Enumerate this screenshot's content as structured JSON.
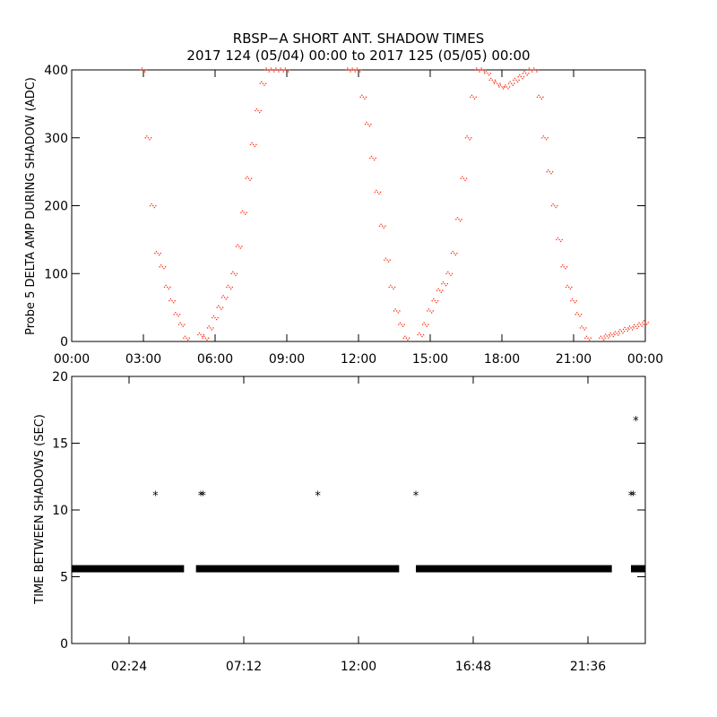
{
  "header": {
    "title": "RBSP−A SHORT ANT. SHADOW TIMES",
    "subtitle": "2017 124 (05/04) 00:00 to 2017 125 (05/05) 00:00"
  },
  "chart_data": [
    {
      "type": "scatter",
      "ylabel": "Probe 5 DELTA AMP DURING SHADOW (ADC)",
      "xlim_hours": [
        0,
        24
      ],
      "ylim": [
        0,
        400
      ],
      "x_ticks": [
        "00:00",
        "03:00",
        "06:00",
        "09:00",
        "12:00",
        "15:00",
        "18:00",
        "21:00",
        "00:00"
      ],
      "y_ticks": [
        "0",
        "100",
        "200",
        "300",
        "400"
      ],
      "marker_color": "#ff2a10",
      "series": [
        {
          "x_hours": [
            3.0,
            3.2,
            3.4,
            3.6,
            3.8,
            4.0,
            4.2,
            4.4,
            4.6,
            4.8,
            5.0,
            5.2,
            5.4,
            5.6,
            5.8,
            6.0,
            6.2,
            6.4,
            6.6,
            6.8,
            7.0,
            7.2,
            7.4,
            7.6,
            7.8,
            8.0,
            8.2,
            8.4,
            8.6,
            8.8,
            9.0,
            9.2,
            9.4,
            9.6,
            9.8,
            10.0,
            10.2,
            10.4,
            10.6,
            10.8,
            11.0,
            11.2,
            11.4,
            11.6,
            11.8,
            12.0,
            12.2,
            12.4,
            12.6,
            12.8,
            13.0,
            13.2,
            13.4,
            13.6,
            13.8,
            14.0,
            14.2,
            14.4,
            14.6,
            14.8,
            15.0,
            15.2,
            15.4,
            15.6,
            15.8,
            16.0,
            16.2,
            16.4,
            16.6,
            16.8,
            17.0,
            17.2,
            17.4,
            17.6,
            17.8,
            18.0,
            18.2,
            18.4,
            18.6,
            18.8,
            19.0,
            19.2,
            19.4,
            19.6,
            19.8,
            20.0,
            20.2,
            20.4,
            20.6,
            20.8,
            21.0,
            21.2,
            21.4,
            21.6,
            21.8,
            22.0,
            22.2,
            22.4,
            22.6,
            22.8,
            23.0,
            23.2,
            23.4,
            23.6,
            23.8,
            24.0
          ],
          "y": [
            400,
            300,
            200,
            130,
            110,
            80,
            60,
            40,
            25,
            5,
            null,
            null,
            10,
            5,
            20,
            35,
            50,
            65,
            80,
            100,
            140,
            190,
            240,
            290,
            340,
            380,
            400,
            400,
            400,
            400,
            400,
            null,
            null,
            null,
            null,
            null,
            null,
            null,
            null,
            null,
            null,
            null,
            null,
            400,
            400,
            400,
            360,
            320,
            270,
            220,
            170,
            120,
            80,
            45,
            25,
            5,
            null,
            null,
            10,
            25,
            45,
            60,
            75,
            85,
            100,
            130,
            180,
            240,
            300,
            360,
            400,
            400,
            395,
            385,
            380,
            375,
            375,
            380,
            385,
            390,
            395,
            400,
            400,
            360,
            300,
            250,
            200,
            150,
            110,
            80,
            60,
            40,
            20,
            5,
            null,
            null,
            5,
            8,
            10,
            12,
            15,
            18,
            20,
            22,
            25,
            28
          ]
        }
      ]
    },
    {
      "type": "scatter",
      "ylabel": "TIME BETWEEN SHADOWS (SEC)",
      "xlim_hours": [
        0,
        24
      ],
      "ylim": [
        0,
        20
      ],
      "x_ticks": [
        "02:24",
        "07:12",
        "12:00",
        "16:48",
        "21:36"
      ],
      "y_ticks": [
        "0",
        "5",
        "10",
        "15",
        "20"
      ],
      "marker_color": "#000000",
      "baseline": {
        "y": 5.6,
        "segments_hours": [
          [
            0.0,
            4.7
          ],
          [
            5.2,
            13.7
          ],
          [
            14.4,
            22.6
          ],
          [
            23.4,
            24.0
          ]
        ]
      },
      "series": [
        {
          "x_hours": [
            3.5,
            5.4,
            5.5,
            10.3,
            14.4,
            23.4,
            23.5,
            23.6
          ],
          "y": [
            11.1,
            11.1,
            11.1,
            11.1,
            11.1,
            11.1,
            11.1,
            16.7
          ]
        }
      ]
    }
  ]
}
